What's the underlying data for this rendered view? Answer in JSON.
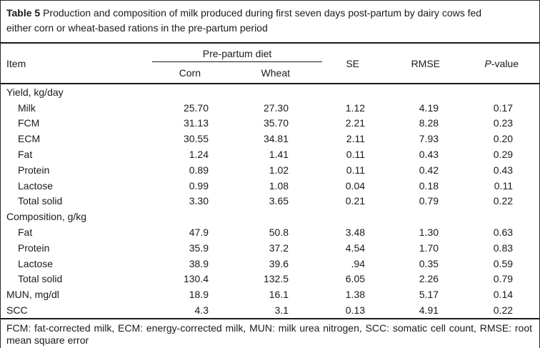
{
  "title": {
    "label": "Table 5",
    "line1": "Production and composition of milk produced during first seven days post-partum by dairy cows fed",
    "line2": "either corn or wheat-based rations in the pre-partum period"
  },
  "table": {
    "header": {
      "item": "Item",
      "diet_group": "Pre-partum diet",
      "corn": "Corn",
      "wheat": "Wheat",
      "se": "SE",
      "rmse": "RMSE",
      "pvalue_italic": "P",
      "pvalue_rest": "-value"
    },
    "rows": [
      {
        "item": "Yield, kg/day",
        "group": true,
        "indent": false,
        "corn": "",
        "wheat": "",
        "se": "",
        "rmse": "",
        "p": ""
      },
      {
        "item": "Milk",
        "group": false,
        "indent": true,
        "corn": "25.70",
        "wheat": "27.30",
        "se": "1.12",
        "rmse": "4.19",
        "p": "0.17"
      },
      {
        "item": "FCM",
        "group": false,
        "indent": true,
        "corn": "31.13",
        "wheat": "35.70",
        "se": "2.21",
        "rmse": "8.28",
        "p": "0.23"
      },
      {
        "item": "ECM",
        "group": false,
        "indent": true,
        "corn": "30.55",
        "wheat": "34.81",
        "se": "2.11",
        "rmse": "7.93",
        "p": "0.20"
      },
      {
        "item": "Fat",
        "group": false,
        "indent": true,
        "corn": "1.24",
        "wheat": "1.41",
        "se": "0.11",
        "rmse": "0.43",
        "p": "0.29"
      },
      {
        "item": "Protein",
        "group": false,
        "indent": true,
        "corn": "0.89",
        "wheat": "1.02",
        "se": "0.11",
        "rmse": "0.42",
        "p": "0.43"
      },
      {
        "item": "Lactose",
        "group": false,
        "indent": true,
        "corn": "0.99",
        "wheat": "1.08",
        "se": "0.04",
        "rmse": "0.18",
        "p": "0.11"
      },
      {
        "item": "Total solid",
        "group": false,
        "indent": true,
        "corn": "3.30",
        "wheat": "3.65",
        "se": "0.21",
        "rmse": "0.79",
        "p": "0.22"
      },
      {
        "item": "Composition, g/kg",
        "group": true,
        "indent": false,
        "corn": "",
        "wheat": "",
        "se": "",
        "rmse": "",
        "p": ""
      },
      {
        "item": "Fat",
        "group": false,
        "indent": true,
        "corn": "47.9",
        "wheat": "50.8",
        "se": "3.48",
        "rmse": "1.30",
        "p": "0.63"
      },
      {
        "item": "Protein",
        "group": false,
        "indent": true,
        "corn": "35.9",
        "wheat": "37.2",
        "se": "4.54",
        "rmse": "1.70",
        "p": "0.83"
      },
      {
        "item": "Lactose",
        "group": false,
        "indent": true,
        "corn": "38.9",
        "wheat": "39.6",
        "se": ".94",
        "rmse": "0.35",
        "p": "0.59"
      },
      {
        "item": "Total solid",
        "group": false,
        "indent": true,
        "corn": "130.4",
        "wheat": "132.5",
        "se": "6.05",
        "rmse": "2.26",
        "p": "0.79"
      },
      {
        "item": "MUN, mg/dl",
        "group": false,
        "indent": false,
        "corn": "18.9",
        "wheat": "16.1",
        "se": "1.38",
        "rmse": "5.17",
        "p": "0.14"
      },
      {
        "item": "SCC",
        "group": false,
        "indent": false,
        "corn": "4.3",
        "wheat": "3.1",
        "se": "0.13",
        "rmse": "4.91",
        "p": "0.22"
      }
    ]
  },
  "footnote": "FCM: fat-corrected milk, ECM: energy-corrected milk, MUN: milk urea nitrogen, SCC: somatic cell count, RMSE: root mean square error",
  "colors": {
    "text": "#1a1a1a",
    "rule": "#1a1a1a",
    "background": "#ffffff"
  }
}
